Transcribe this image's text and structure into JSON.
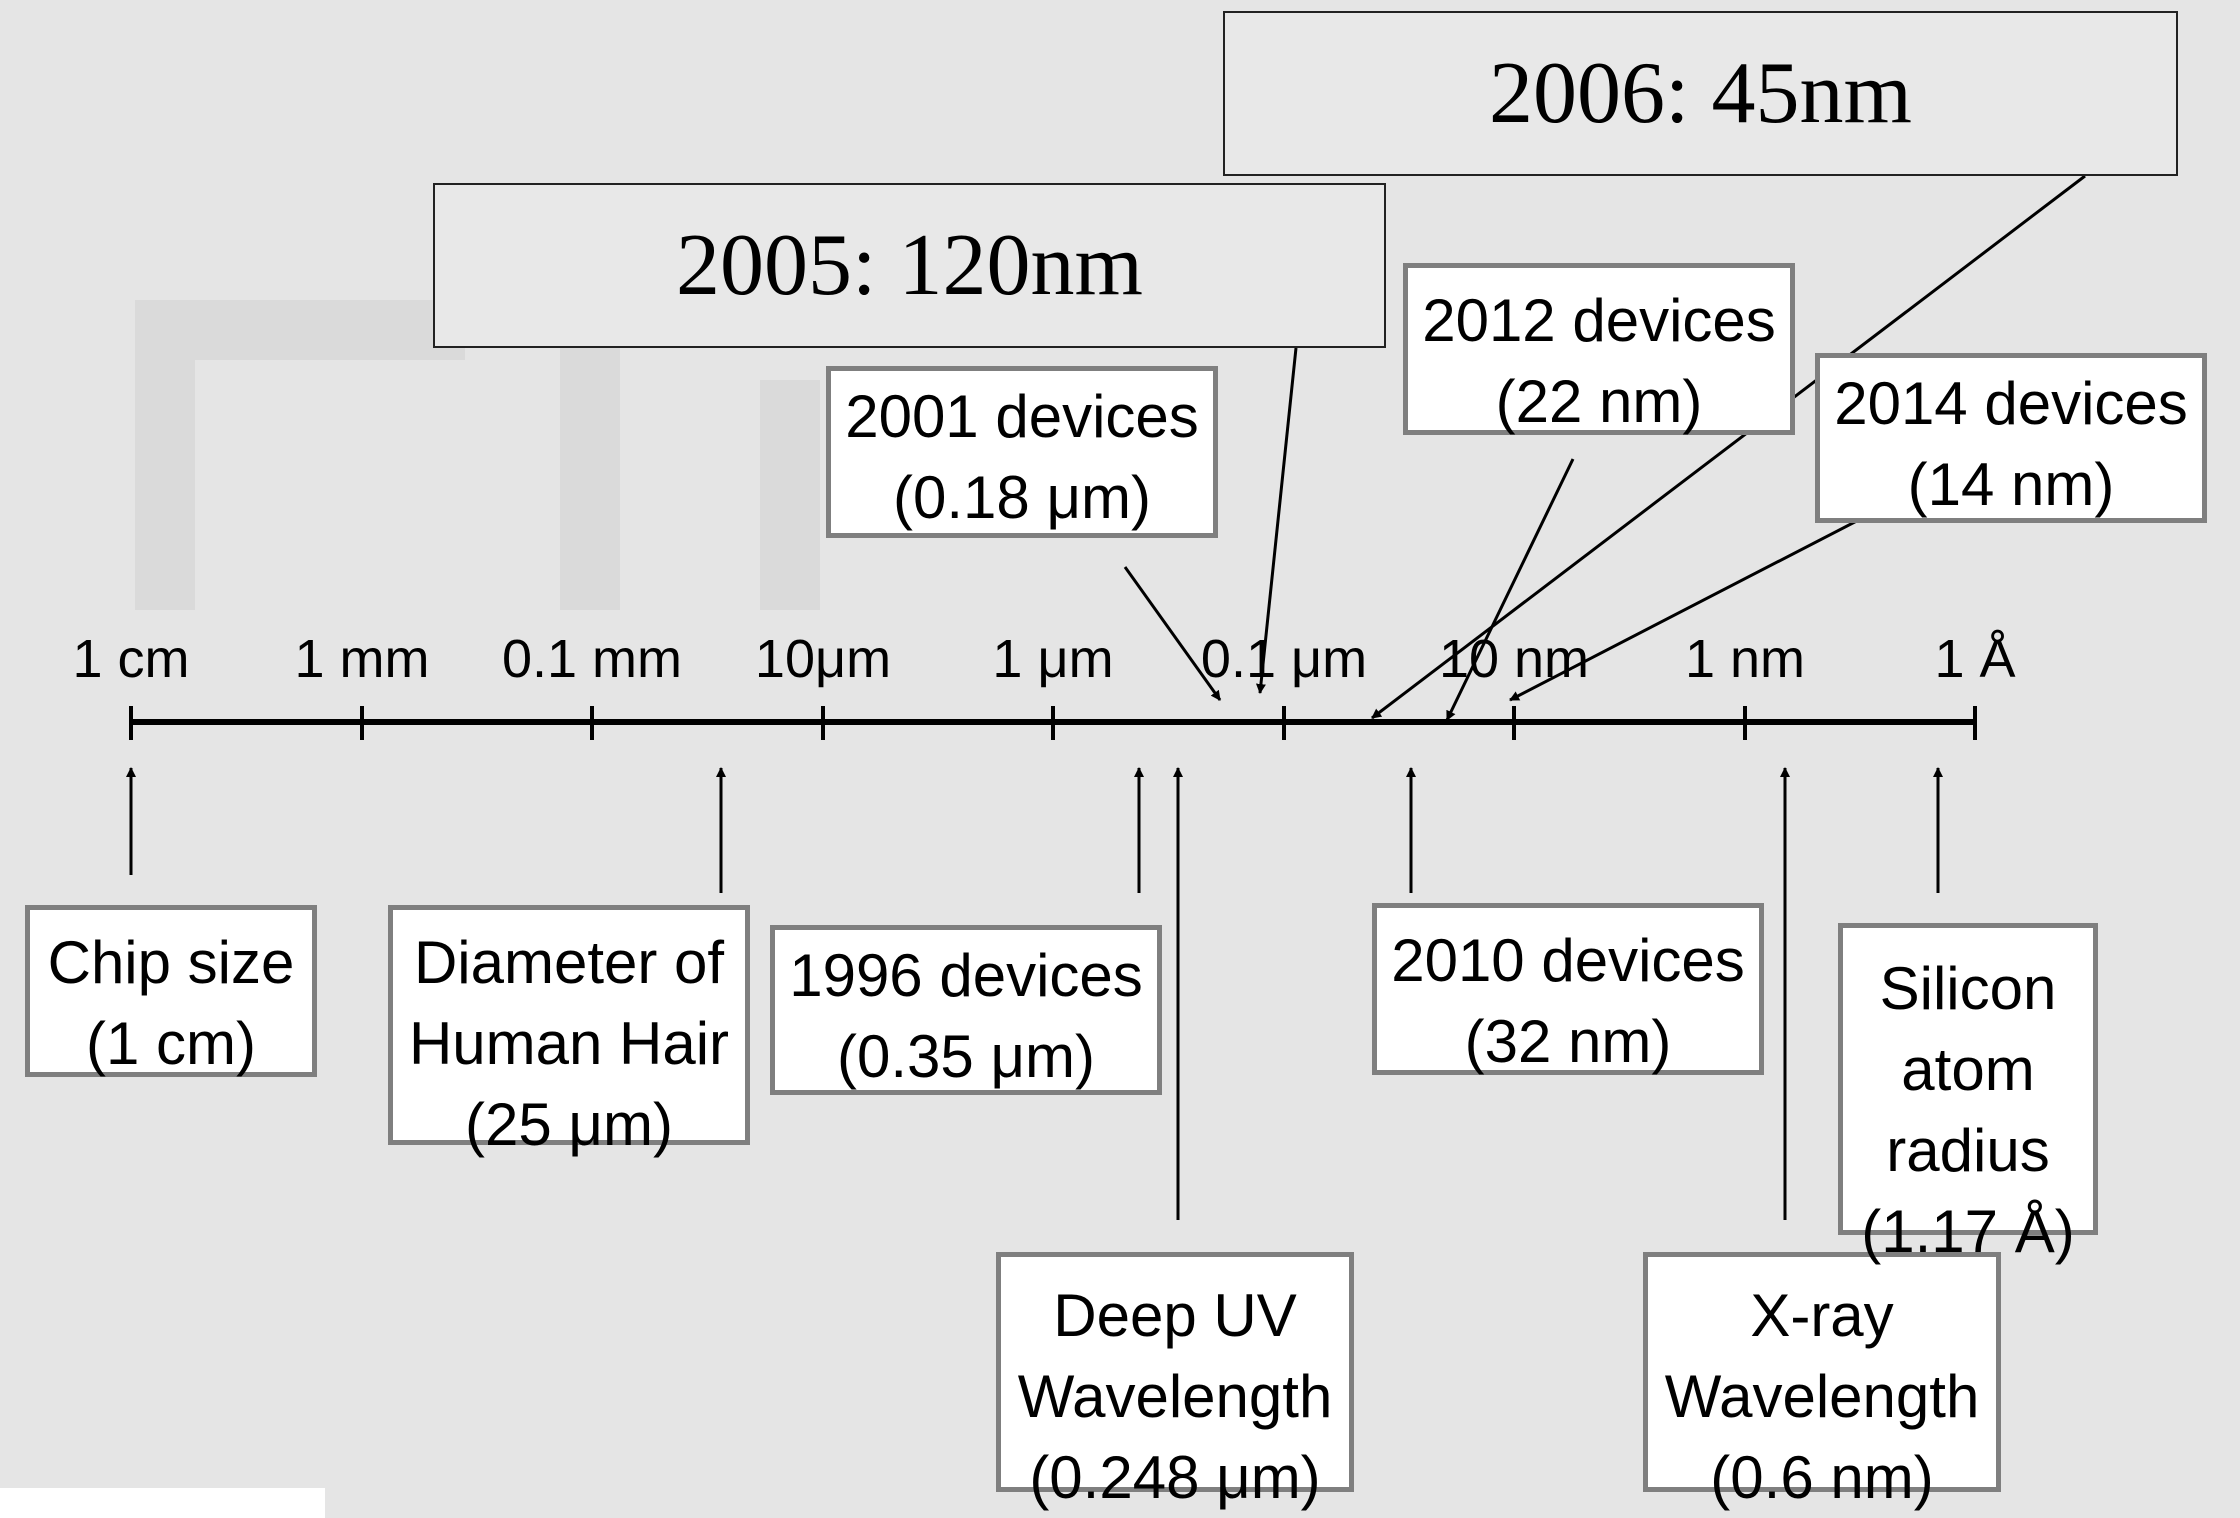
{
  "scale": {
    "ticks": [
      "1 cm",
      "1 mm",
      "0.1 mm",
      "10μm",
      "1 μm",
      "0.1 μm",
      "10 nm",
      "1 nm",
      "1 Å"
    ]
  },
  "callouts": {
    "y2005": "2005: 120nm",
    "y2006": "2006: 45nm"
  },
  "above": {
    "d2001": [
      "2001 devices",
      "(0.18 μm)"
    ],
    "d2012": [
      "2012 devices",
      "(22 nm)"
    ],
    "d2014": [
      "2014 devices",
      "(14 nm)"
    ]
  },
  "below": {
    "chip": [
      "Chip size",
      "(1 cm)"
    ],
    "hair": [
      "Diameter of",
      "Human Hair",
      "(25 μm)"
    ],
    "d1996": [
      "1996 devices",
      "(0.35 μm)"
    ],
    "deepuv": [
      "Deep UV",
      "Wavelength",
      "(0.248 μm)"
    ],
    "d2010": [
      "2010 devices",
      "(32 nm)"
    ],
    "xray": [
      "X-ray",
      "Wavelength",
      "(0.6 nm)"
    ],
    "silicon": [
      "Silicon",
      "atom",
      "radius",
      "(1.17 Å)"
    ]
  },
  "colors": {
    "background": "#e5e5e5",
    "box_border": "#7f7f7f",
    "line": "#000000"
  }
}
